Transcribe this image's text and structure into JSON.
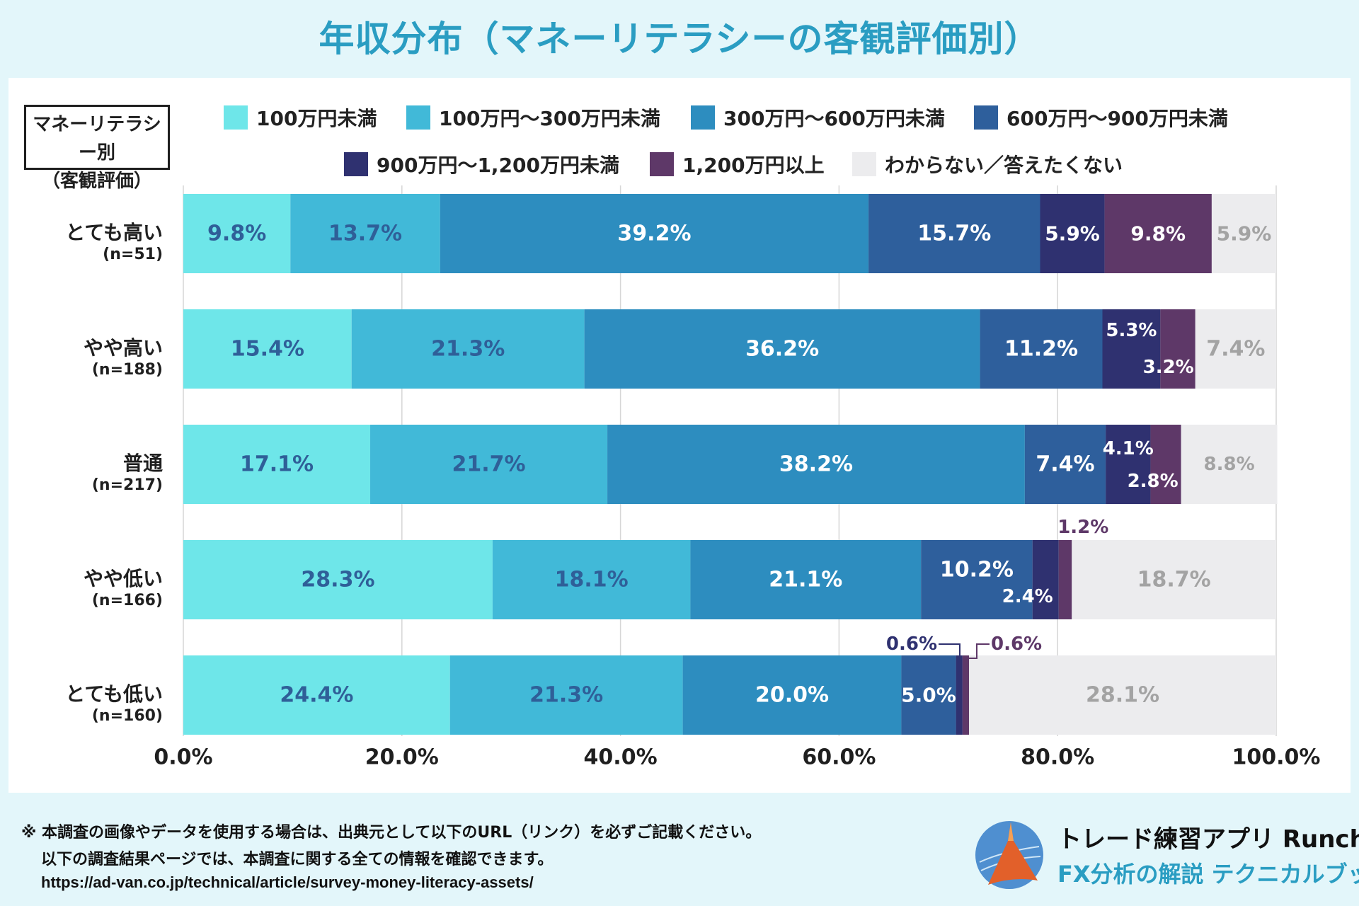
{
  "title": "年収分布（マネーリテラシーの客観評価別）",
  "category_header": [
    "マネーリテラシー別",
    "（客観評価）"
  ],
  "chart_data": {
    "type": "bar",
    "orientation": "horizontal",
    "stacked": true,
    "legend_position": "top",
    "grid": true,
    "xlim": [
      0,
      100
    ],
    "x_ticks": [
      "0.0%",
      "20.0%",
      "40.0%",
      "60.0%",
      "80.0%",
      "100.0%"
    ],
    "categories": [
      {
        "label": "とても高い",
        "n": "(n=51)"
      },
      {
        "label": "やや高い",
        "n": "(n=188)"
      },
      {
        "label": "普通",
        "n": "(n=217)"
      },
      {
        "label": "やや低い",
        "n": "(n=166)"
      },
      {
        "label": "とても低い",
        "n": "(n=160)"
      }
    ],
    "series": [
      {
        "name": "100万円未満",
        "color": "#6ee6e9",
        "label_color": "#2f5f98",
        "values": [
          9.8,
          15.4,
          17.1,
          28.3,
          24.4
        ]
      },
      {
        "name": "100万円～300万円未満",
        "color": "#41b9d8",
        "label_color": "#2f5f98",
        "values": [
          13.7,
          21.3,
          21.7,
          18.1,
          21.3
        ]
      },
      {
        "name": "300万円～600万円未満",
        "color": "#2d8dbf",
        "label_color": "#ffffff",
        "values": [
          39.2,
          36.2,
          38.2,
          21.1,
          20.0
        ]
      },
      {
        "name": "600万円～900万円未満",
        "color": "#2e5f9c",
        "label_color": "#ffffff",
        "values": [
          15.7,
          11.2,
          7.4,
          10.2,
          5.0
        ]
      },
      {
        "name": "900万円～1,200万円未満",
        "color": "#2f3170",
        "label_color": "#ffffff",
        "values": [
          5.9,
          5.3,
          4.1,
          2.4,
          0.6
        ]
      },
      {
        "name": "1,200万円以上",
        "color": "#5e3868",
        "label_color": "#ffffff",
        "values": [
          9.8,
          3.2,
          2.8,
          1.2,
          0.6
        ]
      },
      {
        "name": "わからない／答えたくない",
        "color": "#ececee",
        "label_color": "#a3a3a3",
        "values": [
          5.9,
          7.4,
          8.8,
          18.7,
          28.1
        ]
      }
    ],
    "value_labels": [
      [
        "9.8%",
        "13.7%",
        "39.2%",
        "15.7%",
        "5.9%",
        "9.8%",
        "5.9%"
      ],
      [
        "15.4%",
        "21.3%",
        "36.2%",
        "11.2%",
        "5.3%",
        "3.2%",
        "7.4%"
      ],
      [
        "17.1%",
        "21.7%",
        "38.2%",
        "7.4%",
        "4.1%",
        "2.8%",
        "8.8%"
      ],
      [
        "28.3%",
        "18.1%",
        "21.1%",
        "10.2%",
        "2.4%",
        "1.2%",
        "18.7%"
      ],
      [
        "24.4%",
        "21.3%",
        "20.0%",
        "5.0%",
        "0.6%",
        "0.6%",
        "28.1%"
      ]
    ]
  },
  "notes": [
    "※ 本調査の画像やデータを使用する場合は、出典元として以下のURL（リンク）を必ずご記載ください。",
    "以下の調査結果ページでは、本調査に関する全ての情報を確認できます。",
    "https://ad-van.co.jp/technical/article/survey-money-literacy-assets/"
  ],
  "brand": {
    "name": "トレード練習アプリ  Runcha",
    "subtitle": "FX分析の解説  テクニカルブック"
  }
}
